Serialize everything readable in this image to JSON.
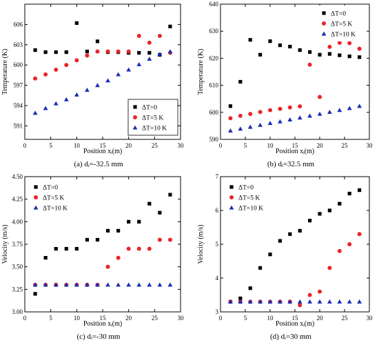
{
  "chart_data": [
    {
      "type": "scatter",
      "caption": "(a) dᵢ=-32.5 mm",
      "xlabel": "Position xᵢ(m)",
      "ylabel": "Temperature (K)",
      "xlim": [
        0,
        30
      ],
      "ylim": [
        589,
        609
      ],
      "xticks": [
        0,
        5,
        10,
        15,
        20,
        25,
        30
      ],
      "yticks": [
        591,
        594,
        597,
        600,
        603,
        606
      ],
      "ytick_labels": [
        "591",
        "594",
        "597",
        "600",
        "603",
        "606"
      ],
      "legend_position": "bottom-right",
      "series": [
        {
          "name": "ΔT=0",
          "marker": "square",
          "color": "#000000",
          "x": [
            2,
            4,
            6,
            8,
            10,
            12,
            14,
            16,
            18,
            20,
            22,
            24,
            26,
            28
          ],
          "y": [
            602.2,
            601.9,
            601.9,
            601.9,
            606.2,
            602.0,
            603.5,
            601.9,
            601.9,
            601.8,
            601.8,
            601.8,
            601.5,
            605.7
          ]
        },
        {
          "name": "ΔT=5 K",
          "marker": "circle",
          "color": "#e8252a",
          "x": [
            2,
            4,
            6,
            8,
            10,
            12,
            14,
            16,
            18,
            20,
            22,
            24,
            26,
            28
          ],
          "y": [
            598.0,
            598.6,
            599.3,
            600.0,
            600.7,
            601.4,
            602.0,
            602.0,
            602.0,
            602.0,
            604.3,
            603.3,
            604.3,
            601.8
          ]
        },
        {
          "name": "ΔT=10 K",
          "marker": "triangle",
          "color": "#1a2eb5",
          "x": [
            2,
            4,
            6,
            8,
            10,
            12,
            14,
            16,
            18,
            20,
            22,
            24,
            26,
            28
          ],
          "y": [
            592.9,
            593.6,
            594.3,
            594.9,
            595.6,
            596.3,
            597.0,
            597.7,
            598.6,
            599.3,
            600.1,
            600.9,
            601.6,
            602.0
          ]
        }
      ]
    },
    {
      "type": "scatter",
      "caption": "(b) dᵢ=32.5 mm",
      "xlabel": "Position xᵢ(m)",
      "ylabel": "Temperature (K)",
      "xlim": [
        0,
        30
      ],
      "ylim": [
        590,
        640
      ],
      "xticks": [
        0,
        5,
        10,
        15,
        20,
        25,
        30
      ],
      "yticks": [
        590,
        600,
        610,
        620,
        630,
        640
      ],
      "ytick_labels": [
        "590",
        "600",
        "610",
        "620",
        "630",
        "640"
      ],
      "legend_position": "top-right",
      "series": [
        {
          "name": "ΔT=0",
          "marker": "square",
          "color": "#000000",
          "x": [
            2,
            4,
            6,
            8,
            10,
            12,
            14,
            16,
            18,
            20,
            22,
            24,
            26,
            28
          ],
          "y": [
            602.3,
            611.3,
            626.8,
            621.3,
            626.3,
            624.8,
            624.3,
            623.0,
            622.3,
            621.3,
            621.6,
            621.1,
            620.7,
            620.4
          ]
        },
        {
          "name": "ΔT=5 K",
          "marker": "circle",
          "color": "#e8252a",
          "x": [
            2,
            4,
            6,
            8,
            10,
            12,
            14,
            16,
            18,
            20,
            22,
            24,
            26,
            28
          ],
          "y": [
            597.8,
            598.7,
            599.4,
            600.1,
            600.8,
            601.3,
            601.8,
            602.2,
            617.6,
            605.7,
            624.2,
            625.7,
            625.6,
            623.5
          ]
        },
        {
          "name": "ΔT=10 K",
          "marker": "triangle",
          "color": "#1a2eb5",
          "x": [
            2,
            4,
            6,
            8,
            10,
            12,
            14,
            16,
            18,
            20,
            22,
            24,
            26,
            28
          ],
          "y": [
            593.2,
            593.9,
            594.6,
            595.3,
            596.0,
            596.6,
            597.3,
            598.0,
            598.7,
            599.4,
            600.1,
            600.8,
            601.5,
            602.3
          ]
        }
      ]
    },
    {
      "type": "scatter",
      "caption": "(c) dᵢ=-30 mm",
      "xlabel": "Position xᵢ(m)",
      "ylabel": "Velocity (m/s)",
      "xlim": [
        0,
        30
      ],
      "ylim": [
        3.0,
        4.5
      ],
      "xticks": [
        0,
        5,
        10,
        15,
        20,
        25,
        30
      ],
      "yticks": [
        3.0,
        3.25,
        3.5,
        3.75,
        4.0,
        4.25,
        4.5
      ],
      "ytick_labels": [
        "3.00",
        "3.25",
        "3.50",
        "3.75",
        "4.00",
        "4.25",
        "4.50"
      ],
      "legend_position": "top-left",
      "series": [
        {
          "name": "ΔT=0",
          "marker": "square",
          "color": "#000000",
          "x": [
            2,
            4,
            6,
            8,
            10,
            12,
            14,
            16,
            18,
            20,
            22,
            24,
            26,
            28
          ],
          "y": [
            3.2,
            3.6,
            3.7,
            3.7,
            3.7,
            3.8,
            3.8,
            3.9,
            3.9,
            4.0,
            4.0,
            4.2,
            4.1,
            4.3
          ]
        },
        {
          "name": "ΔT=5 K",
          "marker": "circle",
          "color": "#e8252a",
          "x": [
            2,
            4,
            6,
            8,
            10,
            12,
            14,
            16,
            18,
            20,
            22,
            24,
            26,
            28
          ],
          "y": [
            3.3,
            3.3,
            3.3,
            3.3,
            3.3,
            3.3,
            3.3,
            3.5,
            3.6,
            3.7,
            3.7,
            3.7,
            3.8,
            3.8
          ]
        },
        {
          "name": "ΔT=10 K",
          "marker": "triangle",
          "color": "#1a2eb5",
          "x": [
            2,
            4,
            6,
            8,
            10,
            12,
            14,
            16,
            18,
            20,
            22,
            24,
            26,
            28
          ],
          "y": [
            3.3,
            3.3,
            3.3,
            3.3,
            3.3,
            3.3,
            3.3,
            3.3,
            3.3,
            3.3,
            3.3,
            3.3,
            3.3,
            3.3
          ]
        }
      ]
    },
    {
      "type": "scatter",
      "caption": "(d) dᵢ=30 mm",
      "xlabel": "Position xᵢ(m)",
      "ylabel": "Velocity (m/s)",
      "xlim": [
        0,
        30
      ],
      "ylim": [
        3.0,
        7.0
      ],
      "xticks": [
        0,
        5,
        10,
        15,
        20,
        25,
        30
      ],
      "yticks": [
        3,
        4,
        5,
        6,
        7
      ],
      "ytick_labels": [
        "3",
        "4",
        "5",
        "6",
        "7"
      ],
      "legend_position": "top-left",
      "series": [
        {
          "name": "ΔT=0",
          "marker": "square",
          "color": "#000000",
          "x": [
            2,
            4,
            6,
            8,
            10,
            12,
            14,
            16,
            18,
            20,
            22,
            24,
            26,
            28
          ],
          "y": [
            3.3,
            3.4,
            3.7,
            4.3,
            4.7,
            5.1,
            5.3,
            5.4,
            5.7,
            5.9,
            6.0,
            6.2,
            6.5,
            6.6
          ]
        },
        {
          "name": "ΔT=5 K",
          "marker": "circle",
          "color": "#e8252a",
          "x": [
            2,
            4,
            6,
            8,
            10,
            12,
            14,
            16,
            18,
            20,
            22,
            24,
            26,
            28
          ],
          "y": [
            3.3,
            3.3,
            3.3,
            3.3,
            3.3,
            3.3,
            3.3,
            3.2,
            3.5,
            3.6,
            4.3,
            4.8,
            5.0,
            5.3
          ]
        },
        {
          "name": "ΔT=10 K",
          "marker": "triangle",
          "color": "#1a2eb5",
          "x": [
            2,
            4,
            6,
            8,
            10,
            12,
            14,
            16,
            18,
            20,
            22,
            24,
            26,
            28
          ],
          "y": [
            3.3,
            3.3,
            3.3,
            3.3,
            3.3,
            3.3,
            3.3,
            3.3,
            3.3,
            3.3,
            3.3,
            3.3,
            3.3,
            3.3
          ]
        }
      ]
    }
  ]
}
